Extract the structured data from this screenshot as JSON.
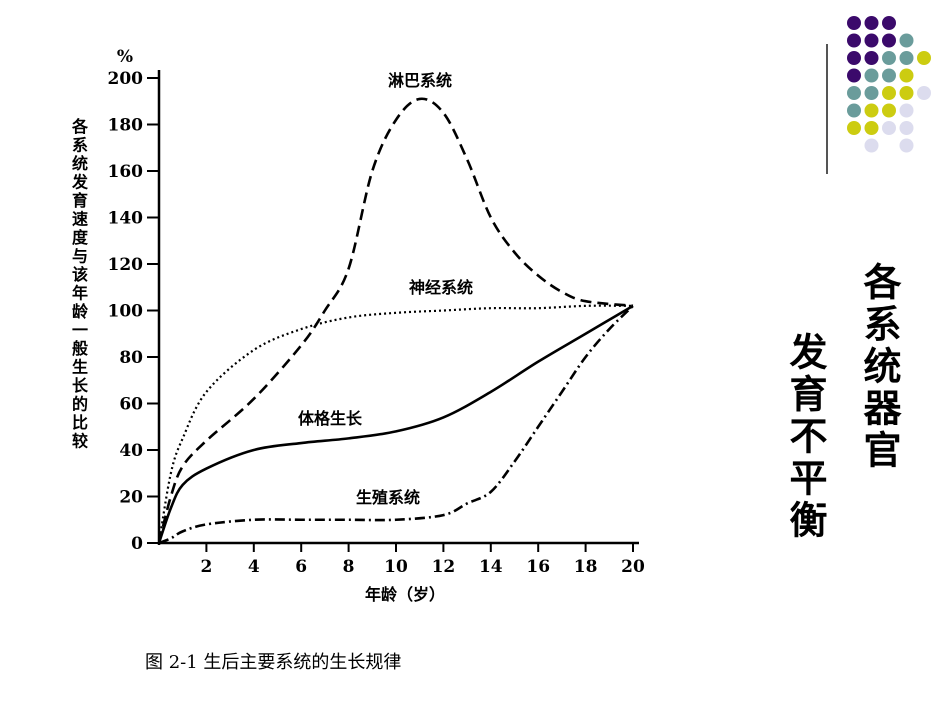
{
  "slide": {
    "title_col1": "各系统器官",
    "title_col2": "发育不平衡"
  },
  "decoration": {
    "dot_colors": [
      "#3b0a6b",
      "#6a9c9b",
      "#cccc11",
      "#dcdcee"
    ]
  },
  "chart_data": {
    "type": "line",
    "caption": "图 2-1   生后主要系统的生长规律",
    "xlabel": "年龄（岁）",
    "ylabel": "各系统发育速度与该年龄一般生长的比较",
    "yunit": "%",
    "xlim": [
      0,
      20
    ],
    "ylim": [
      0,
      200
    ],
    "xticks": [
      2,
      4,
      6,
      8,
      10,
      12,
      14,
      16,
      18,
      20
    ],
    "yticks": [
      0,
      20,
      40,
      60,
      80,
      100,
      120,
      140,
      160,
      180,
      200
    ],
    "grid": false,
    "series": [
      {
        "name": "淋巴系统",
        "style": "dashed",
        "x": [
          0,
          0.5,
          1,
          2,
          4,
          6,
          7,
          8,
          9,
          10,
          11,
          12,
          13,
          14,
          15,
          16,
          17,
          18,
          20
        ],
        "y": [
          0,
          20,
          33,
          44,
          62,
          85,
          100,
          118,
          160,
          182,
          191,
          185,
          165,
          140,
          125,
          115,
          108,
          104,
          102
        ]
      },
      {
        "name": "神经系统",
        "style": "dotted",
        "x": [
          0,
          0.5,
          1,
          2,
          4,
          6,
          8,
          10,
          12,
          14,
          16,
          18,
          20
        ],
        "y": [
          0,
          30,
          45,
          65,
          83,
          92,
          97,
          99,
          100,
          101,
          101,
          102,
          102
        ]
      },
      {
        "name": "体格生长",
        "style": "solid",
        "x": [
          0,
          0.5,
          1,
          2,
          4,
          6,
          8,
          10,
          12,
          14,
          16,
          18,
          20
        ],
        "y": [
          0,
          15,
          25,
          32,
          40,
          43,
          45,
          48,
          54,
          65,
          78,
          90,
          102
        ]
      },
      {
        "name": "生殖系统",
        "style": "dashdot",
        "x": [
          0,
          0.5,
          1,
          2,
          4,
          6,
          8,
          10,
          12,
          13,
          14,
          15,
          16,
          17,
          18,
          19,
          20
        ],
        "y": [
          0,
          2,
          5,
          8,
          10,
          10,
          10,
          10,
          12,
          17,
          22,
          35,
          50,
          65,
          80,
          92,
          102
        ]
      }
    ],
    "series_label_positions": "on-curve"
  }
}
